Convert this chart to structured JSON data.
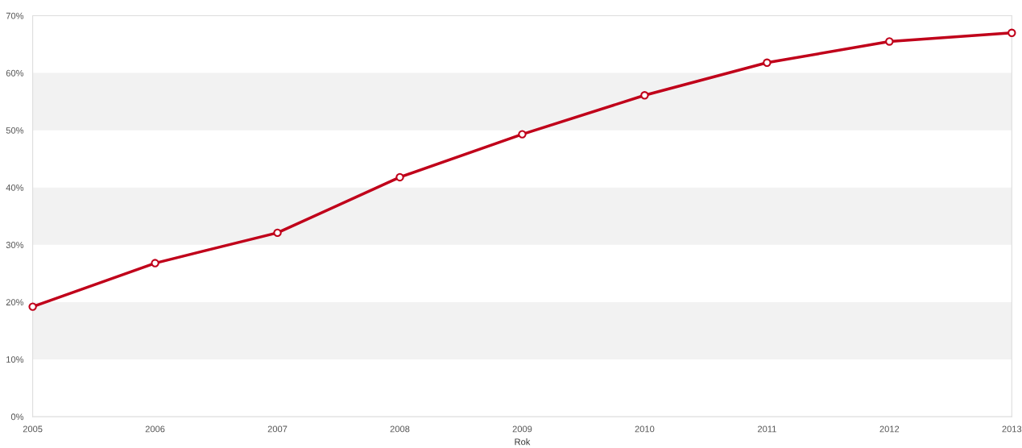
{
  "chart_data": {
    "type": "line",
    "xlabel": "Rok",
    "categories": [
      "2005",
      "2006",
      "2007",
      "2008",
      "2009",
      "2010",
      "2011",
      "2012",
      "2013"
    ],
    "series": [
      {
        "color": "#c0001a",
        "values": [
          19.2,
          26.8,
          32.1,
          41.8,
          49.3,
          56.1,
          61.8,
          65.5,
          67.0
        ]
      }
    ],
    "marker": "circle",
    "line_style": "solid",
    "ylim": [
      0,
      70
    ],
    "yticks": [
      {
        "value": 0,
        "label": "0%"
      },
      {
        "value": 10,
        "label": "10%"
      },
      {
        "value": 20,
        "label": "20%"
      },
      {
        "value": 30,
        "label": "30%"
      },
      {
        "value": 40,
        "label": "40%"
      },
      {
        "value": 50,
        "label": "50%"
      },
      {
        "value": 60,
        "label": "60%"
      },
      {
        "value": 70,
        "label": "70%"
      }
    ],
    "bands": [
      {
        "axis": "y",
        "from": 10,
        "to": 20,
        "color": "#f2f2f2"
      },
      {
        "axis": "y",
        "from": 30,
        "to": 40,
        "color": "#f2f2f2"
      },
      {
        "axis": "y",
        "from": 50,
        "to": 60,
        "color": "#f2f2f2"
      }
    ],
    "grid": false,
    "legend": false
  }
}
